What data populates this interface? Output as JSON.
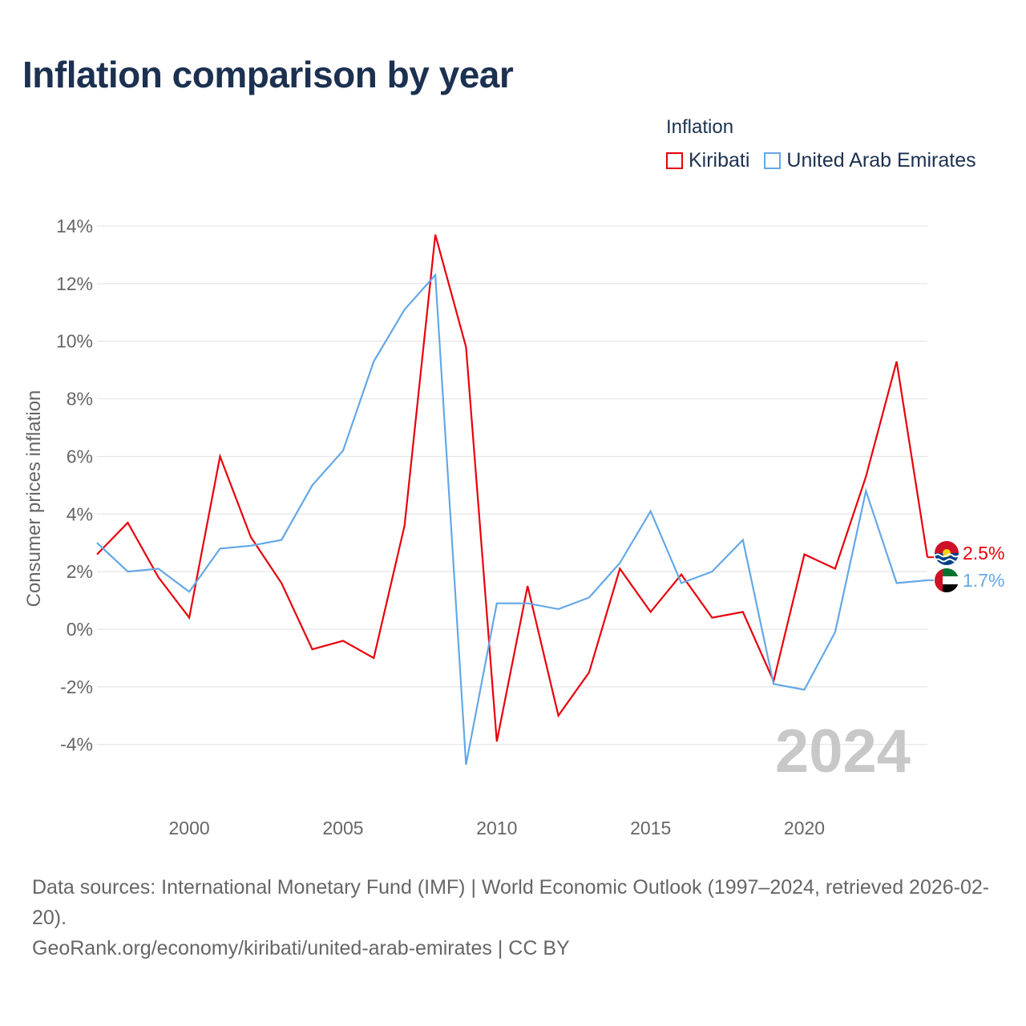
{
  "title": "Inflation comparison by year",
  "legend": {
    "title": "Inflation",
    "items": [
      {
        "label": "Kiribati",
        "color": "#e8000b"
      },
      {
        "label": "United Arab Emirates",
        "color": "#64a8e6"
      }
    ]
  },
  "watermark_year": "2024",
  "footer": {
    "line1": "Data sources: International Monetary Fund (IMF) | World Economic Outlook (1997–2024, retrieved 2026-02-20).",
    "line2": "GeoRank.org/economy/kiribati/united-arab-emirates | CC BY"
  },
  "chart_data": {
    "type": "line",
    "title": "Inflation comparison by year",
    "xlabel": "",
    "ylabel": "Consumer prices inflation",
    "ylim": [
      -5.8,
      14
    ],
    "xlim": [
      1997,
      2024
    ],
    "yticks": [
      -4,
      -2,
      0,
      2,
      4,
      6,
      8,
      10,
      12,
      14
    ],
    "ytick_labels": [
      "-4%",
      "-2%",
      "0%",
      "2%",
      "4%",
      "6%",
      "8%",
      "10%",
      "12%",
      "14%"
    ],
    "xticks": [
      2000,
      2005,
      2010,
      2015,
      2020
    ],
    "xtick_labels": [
      "2000",
      "2005",
      "2010",
      "2015",
      "2020"
    ],
    "x": [
      1997,
      1998,
      1999,
      2000,
      2001,
      2002,
      2003,
      2004,
      2005,
      2006,
      2007,
      2008,
      2009,
      2010,
      2011,
      2012,
      2013,
      2014,
      2015,
      2016,
      2017,
      2018,
      2019,
      2020,
      2021,
      2022,
      2023,
      2024
    ],
    "series": [
      {
        "name": "Kiribati",
        "color": "#e8000b",
        "end_label": "2.5%",
        "values": [
          2.6,
          3.7,
          1.8,
          0.4,
          6.0,
          3.2,
          1.6,
          -0.7,
          -0.4,
          -1.0,
          3.6,
          13.7,
          9.8,
          -3.9,
          1.5,
          -3.0,
          -1.5,
          2.1,
          0.6,
          1.9,
          0.4,
          0.6,
          -1.8,
          2.6,
          2.1,
          5.3,
          9.3,
          2.5
        ]
      },
      {
        "name": "United Arab Emirates",
        "color": "#64a8e6",
        "end_label": "1.7%",
        "values": [
          3.0,
          2.0,
          2.1,
          1.3,
          2.8,
          2.9,
          3.1,
          5.0,
          6.2,
          9.3,
          11.1,
          12.3,
          -4.7,
          0.9,
          0.9,
          0.7,
          1.1,
          2.3,
          4.1,
          1.6,
          2.0,
          3.1,
          -1.9,
          -2.1,
          -0.1,
          4.8,
          1.6,
          1.7
        ]
      }
    ],
    "grid": true
  }
}
